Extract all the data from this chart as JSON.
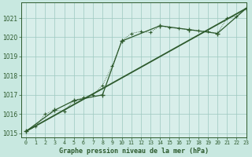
{
  "title": "Graphe pression niveau de la mer (hPa)",
  "background_color": "#c8e8e0",
  "plot_bg_color": "#d8eeea",
  "grid_color": "#9dc8c0",
  "line_color": "#2d5a2d",
  "xlim": [
    -0.5,
    23
  ],
  "ylim": [
    1014.8,
    1021.8
  ],
  "xticks": [
    0,
    1,
    2,
    3,
    4,
    5,
    6,
    7,
    8,
    9,
    10,
    11,
    12,
    13,
    14,
    15,
    16,
    17,
    18,
    19,
    20,
    21,
    22,
    23
  ],
  "yticks": [
    1015,
    1016,
    1017,
    1018,
    1019,
    1020,
    1021
  ],
  "series1_x": [
    0,
    1,
    2,
    3,
    4,
    5,
    6,
    7,
    8,
    9,
    10,
    11,
    12,
    13,
    14,
    15,
    16,
    17,
    18,
    19,
    20,
    21,
    22,
    23
  ],
  "series1_y": [
    1015.1,
    1015.35,
    1016.0,
    1016.2,
    1016.15,
    1016.7,
    1016.85,
    1017.0,
    1017.5,
    1018.5,
    1019.8,
    1020.2,
    1020.3,
    1020.25,
    1020.6,
    1020.5,
    1020.45,
    1020.4,
    1020.35,
    1020.3,
    1020.2,
    1021.0,
    1021.1,
    1021.5
  ],
  "series2_x": [
    0,
    23
  ],
  "series2_y": [
    1015.1,
    1021.5
  ],
  "series3_x": [
    0,
    3,
    5,
    8,
    10,
    14,
    17,
    20,
    23
  ],
  "series3_y": [
    1015.1,
    1016.2,
    1016.7,
    1017.0,
    1019.8,
    1020.6,
    1020.4,
    1020.2,
    1021.5
  ]
}
